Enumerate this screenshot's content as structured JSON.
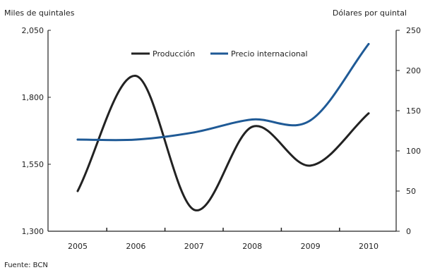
{
  "chart_data": {
    "type": "line",
    "title": "",
    "source": "Fuente: BCN",
    "x": [
      "2005",
      "2006",
      "2007",
      "2008",
      "2009",
      "2010"
    ],
    "y_left": {
      "label": "Miles de quintales",
      "range": [
        1300,
        2050
      ],
      "ticks": [
        "1,300",
        "1,550",
        "1,800",
        "2,050"
      ],
      "tick_values": [
        1300,
        1550,
        1800,
        2050
      ]
    },
    "y_right": {
      "label": "Dólares por quintal",
      "range": [
        0,
        250
      ],
      "ticks": [
        "0",
        "50",
        "100",
        "150",
        "200",
        "250"
      ],
      "tick_values": [
        0,
        50,
        100,
        150,
        200,
        250
      ]
    },
    "series": [
      {
        "name": "Producción",
        "axis": "left",
        "color": "#222222",
        "values": [
          1450,
          1880,
          1380,
          1690,
          1545,
          1740
        ]
      },
      {
        "name": "Precio internacional",
        "axis": "right",
        "color": "#1f5a96",
        "values": [
          114,
          114,
          123,
          139,
          138,
          233
        ]
      }
    ],
    "legend_position": "top-center",
    "grid": false
  }
}
